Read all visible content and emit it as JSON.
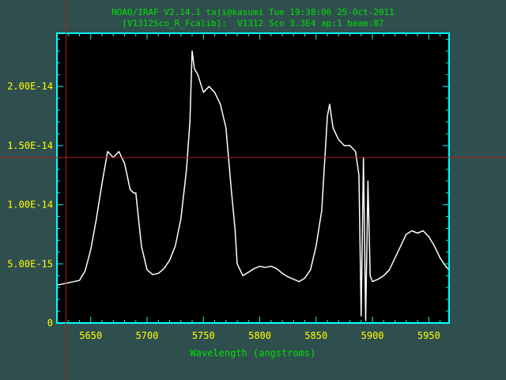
{
  "window": {
    "title_line1": "NOAO/IRAF V2.14.1 taji@kasumi Tue 19:38:06 25-Oct-2011",
    "title_line2": "[V1312Sco_R_Fcalib]:  V1312 Sco 3.3E4 ap:1 beam:87"
  },
  "colors": {
    "background": "#2f4f4f",
    "plot_area": "#000000",
    "frame": "#00ffff",
    "title": "#00e000",
    "tick_labels": "#ffff00",
    "spectrum": "#ffffff",
    "cursor": "#b22222"
  },
  "cursor": {
    "x": 5628,
    "y": 1.4e-14
  },
  "chart_data": {
    "type": "line",
    "xlabel": "Wavelength (angstroms)",
    "ylabel": "",
    "xlim": [
      5620,
      5968
    ],
    "ylim": [
      0,
      2.45e-14
    ],
    "x_ticks": [
      5650,
      5700,
      5750,
      5800,
      5850,
      5900,
      5950
    ],
    "x_tick_labels": [
      "5650",
      "5700",
      "5750",
      "5800",
      "5850",
      "5900",
      "5950"
    ],
    "y_ticks": [
      0,
      5e-15,
      1e-14,
      1.5e-14,
      2e-14
    ],
    "y_tick_labels": [
      "0",
      "5.00E-15",
      "1.00E-14",
      "1.50E-14",
      "2.00E-14"
    ],
    "grid": false,
    "series": [
      {
        "x": [
          5620,
          5630,
          5640,
          5645,
          5650,
          5655,
          5660,
          5665,
          5670,
          5675,
          5680,
          5685,
          5688,
          5690,
          5695,
          5700,
          5705,
          5710,
          5715,
          5720,
          5725,
          5730,
          5735,
          5738,
          5740,
          5742,
          5745,
          5750,
          5755,
          5760,
          5765,
          5770,
          5775,
          5778,
          5780,
          5785,
          5790,
          5795,
          5800,
          5805,
          5810,
          5815,
          5820,
          5825,
          5830,
          5835,
          5840,
          5845,
          5850,
          5855,
          5860,
          5862,
          5865,
          5870,
          5875,
          5880,
          5885,
          5888,
          5890,
          5892,
          5894,
          5896,
          5898,
          5900,
          5905,
          5910,
          5915,
          5920,
          5925,
          5930,
          5935,
          5940,
          5945,
          5950,
          5955,
          5960,
          5965,
          5968
        ],
        "values": [
          3.2e-15,
          3.4e-15,
          3.6e-15,
          4.4e-15,
          6.2e-15,
          8.8e-15,
          1.18e-14,
          1.45e-14,
          1.4e-14,
          1.45e-14,
          1.35e-14,
          1.13e-14,
          1.1e-14,
          1.1e-14,
          6.5e-15,
          4.5e-15,
          4.1e-15,
          4.2e-15,
          4.6e-15,
          5.3e-15,
          6.5e-15,
          8.8e-15,
          1.3e-14,
          1.7e-14,
          2.3e-14,
          2.15e-14,
          2.1e-14,
          1.95e-14,
          2e-14,
          1.95e-14,
          1.85e-14,
          1.65e-14,
          1.1e-14,
          8e-15,
          5e-15,
          4e-15,
          4.3e-15,
          4.6e-15,
          4.8e-15,
          4.7e-15,
          4.8e-15,
          4.6e-15,
          4.2e-15,
          3.9e-15,
          3.7e-15,
          3.5e-15,
          3.8e-15,
          4.5e-15,
          6.5e-15,
          9.5e-15,
          1.75e-14,
          1.85e-14,
          1.65e-14,
          1.55e-14,
          1.5e-14,
          1.5e-14,
          1.45e-14,
          1.25e-14,
          6e-16,
          1.4e-14,
          2e-16,
          1.2e-14,
          4e-15,
          3.5e-15,
          3.7e-15,
          4e-15,
          4.5e-15,
          5.5e-15,
          6.5e-15,
          7.5e-15,
          7.8e-15,
          7.6e-15,
          7.8e-15,
          7.3e-15,
          6.5e-15,
          5.5e-15,
          4.8e-15,
          4.5e-15
        ]
      }
    ]
  }
}
